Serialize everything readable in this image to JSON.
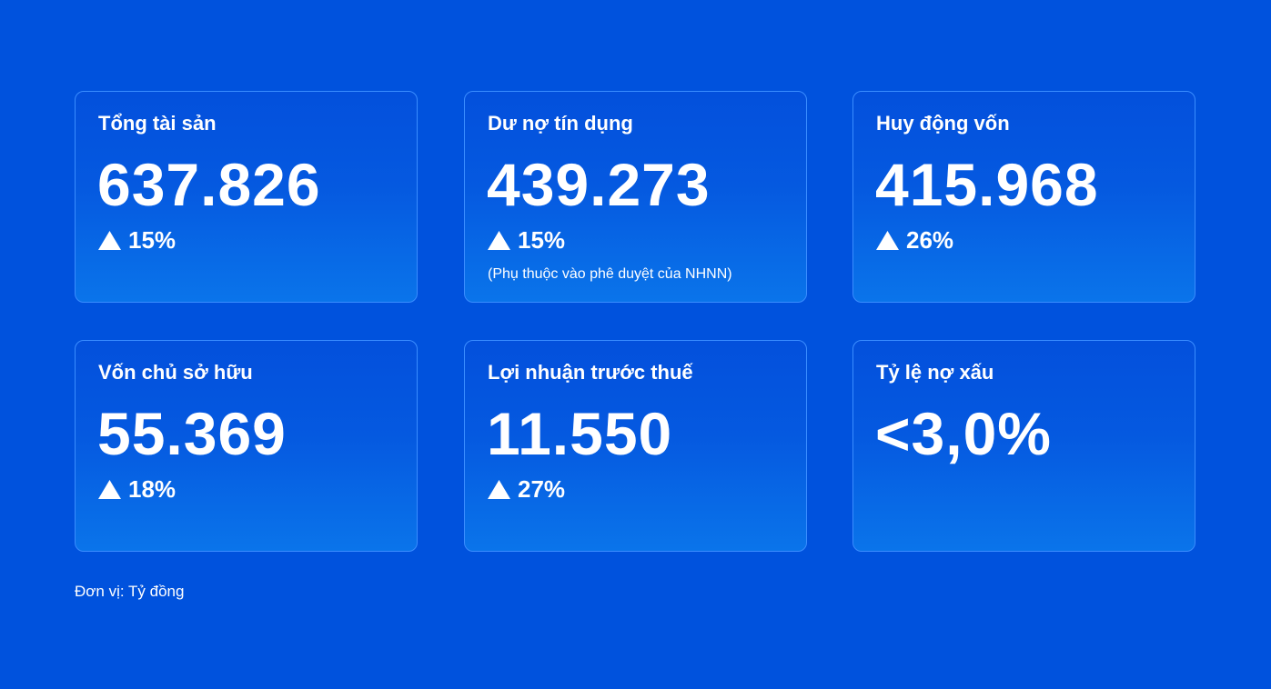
{
  "cards": [
    {
      "label": "Tổng tài sản",
      "value": "637.826",
      "change": "15%"
    },
    {
      "label": "Dư nợ tín dụng",
      "value": "439.273",
      "change": "15%",
      "note": "(Phụ thuộc vào phê duyệt của NHNN)"
    },
    {
      "label": "Huy động vốn",
      "value": "415.968",
      "change": "26%"
    },
    {
      "label": "Vốn chủ sở hữu",
      "value": "55.369",
      "change": "18%"
    },
    {
      "label": "Lợi nhuận trước thuế",
      "value": "11.550",
      "change": "27%"
    },
    {
      "label": "Tỷ lệ nợ xấu",
      "value": "<3,0%"
    }
  ],
  "footer": "Đơn vị: Tỷ đồng"
}
